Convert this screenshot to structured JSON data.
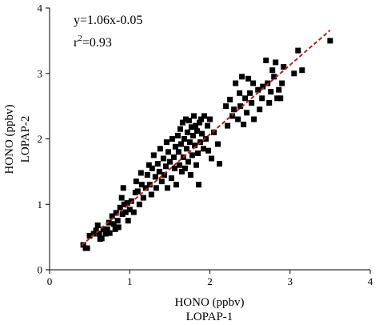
{
  "chart_data": {
    "type": "scatter",
    "xlabel_line1": "HONO (ppbv)",
    "xlabel_line2": "LOPAP-1",
    "ylabel_line1": "HONO (ppbv)",
    "ylabel_line2": "LOPAP-2",
    "xlim": [
      0,
      4
    ],
    "ylim": [
      0,
      4
    ],
    "x_ticks": [
      0,
      1,
      2,
      3,
      4
    ],
    "y_ticks": [
      0,
      1,
      2,
      3,
      4
    ],
    "equation": "y=1.06x-0.05",
    "r2_prefix": "r",
    "r2_sup": "2",
    "r2_value": "=0.93",
    "fit": {
      "slope": 1.06,
      "intercept": -0.05,
      "x_range": [
        0.4,
        3.5
      ],
      "color": "#b22222"
    },
    "points": [
      [
        0.42,
        0.38
      ],
      [
        0.45,
        0.33
      ],
      [
        0.47,
        0.33
      ],
      [
        0.5,
        0.52
      ],
      [
        0.55,
        0.55
      ],
      [
        0.58,
        0.6
      ],
      [
        0.6,
        0.68
      ],
      [
        0.62,
        0.55
      ],
      [
        0.63,
        0.47
      ],
      [
        0.65,
        0.48
      ],
      [
        0.67,
        0.62
      ],
      [
        0.7,
        0.55
      ],
      [
        0.72,
        0.62
      ],
      [
        0.74,
        0.72
      ],
      [
        0.75,
        0.56
      ],
      [
        0.78,
        0.82
      ],
      [
        0.8,
        0.7
      ],
      [
        0.82,
        0.62
      ],
      [
        0.83,
        0.87
      ],
      [
        0.85,
        0.75
      ],
      [
        0.86,
        0.65
      ],
      [
        0.88,
        0.95
      ],
      [
        0.9,
        1.1
      ],
      [
        0.91,
        0.85
      ],
      [
        0.92,
        1.25
      ],
      [
        0.93,
        1.0
      ],
      [
        0.95,
        0.88
      ],
      [
        0.97,
        1.02
      ],
      [
        0.98,
        0.75
      ],
      [
        1.0,
        0.92
      ],
      [
        1.02,
        1.05
      ],
      [
        1.05,
        0.88
      ],
      [
        1.07,
        1.18
      ],
      [
        1.08,
        1.35
      ],
      [
        1.1,
        1.2
      ],
      [
        1.12,
        1.0
      ],
      [
        1.14,
        1.48
      ],
      [
        1.15,
        1.3
      ],
      [
        1.17,
        1.1
      ],
      [
        1.2,
        1.25
      ],
      [
        1.22,
        1.45
      ],
      [
        1.24,
        1.6
      ],
      [
        1.25,
        1.3
      ],
      [
        1.27,
        1.15
      ],
      [
        1.28,
        1.55
      ],
      [
        1.3,
        1.75
      ],
      [
        1.32,
        1.42
      ],
      [
        1.33,
        1.25
      ],
      [
        1.35,
        1.62
      ],
      [
        1.37,
        1.5
      ],
      [
        1.38,
        1.85
      ],
      [
        1.4,
        1.35
      ],
      [
        1.42,
        1.7
      ],
      [
        1.43,
        1.45
      ],
      [
        1.45,
        1.58
      ],
      [
        1.46,
        1.95
      ],
      [
        1.47,
        1.25
      ],
      [
        1.48,
        1.8
      ],
      [
        1.5,
        1.65
      ],
      [
        1.52,
        1.4
      ],
      [
        1.53,
        2.0
      ],
      [
        1.55,
        1.72
      ],
      [
        1.56,
        1.55
      ],
      [
        1.57,
        1.88
      ],
      [
        1.58,
        1.3
      ],
      [
        1.6,
        2.05
      ],
      [
        1.61,
        1.8
      ],
      [
        1.62,
        1.6
      ],
      [
        1.63,
        2.15
      ],
      [
        1.64,
        1.92
      ],
      [
        1.65,
        1.5
      ],
      [
        1.66,
        2.25
      ],
      [
        1.67,
        1.72
      ],
      [
        1.68,
        2.0
      ],
      [
        1.69,
        1.55
      ],
      [
        1.7,
        2.3
      ],
      [
        1.71,
        1.85
      ],
      [
        1.72,
        2.1
      ],
      [
        1.73,
        1.65
      ],
      [
        1.74,
        2.28
      ],
      [
        1.75,
        1.95
      ],
      [
        1.76,
        1.45
      ],
      [
        1.77,
        2.18
      ],
      [
        1.78,
        1.75
      ],
      [
        1.79,
        2.05
      ],
      [
        1.8,
        2.35
      ],
      [
        1.81,
        1.9
      ],
      [
        1.82,
        2.2
      ],
      [
        1.83,
        1.6
      ],
      [
        1.84,
        2.12
      ],
      [
        1.85,
        1.78
      ],
      [
        1.86,
        1.3
      ],
      [
        1.87,
        2.25
      ],
      [
        1.88,
        1.95
      ],
      [
        1.89,
        2.3
      ],
      [
        1.9,
        2.08
      ],
      [
        1.92,
        1.85
      ],
      [
        1.93,
        2.35
      ],
      [
        1.95,
        2.0
      ],
      [
        1.97,
        2.2
      ],
      [
        1.98,
        1.82
      ],
      [
        2.0,
        2.3
      ],
      [
        2.02,
        1.7
      ],
      [
        2.05,
        2.1
      ],
      [
        2.1,
        1.92
      ],
      [
        2.12,
        1.62
      ],
      [
        2.2,
        2.5
      ],
      [
        2.22,
        2.2
      ],
      [
        2.25,
        2.6
      ],
      [
        2.28,
        2.35
      ],
      [
        2.3,
        2.45
      ],
      [
        2.32,
        2.85
      ],
      [
        2.35,
        2.3
      ],
      [
        2.37,
        2.7
      ],
      [
        2.38,
        2.5
      ],
      [
        2.4,
        2.95
      ],
      [
        2.42,
        2.22
      ],
      [
        2.44,
        2.62
      ],
      [
        2.46,
        2.4
      ],
      [
        2.48,
        2.92
      ],
      [
        2.5,
        2.7
      ],
      [
        2.52,
        2.55
      ],
      [
        2.54,
        2.85
      ],
      [
        2.55,
        2.3
      ],
      [
        2.6,
        2.75
      ],
      [
        2.62,
        2.45
      ],
      [
        2.65,
        2.62
      ],
      [
        2.66,
        2.8
      ],
      [
        2.7,
        3.2
      ],
      [
        2.72,
        2.85
      ],
      [
        2.74,
        2.55
      ],
      [
        2.76,
        2.72
      ],
      [
        2.78,
        3.05
      ],
      [
        2.8,
        2.95
      ],
      [
        2.82,
        3.17
      ],
      [
        2.84,
        2.62
      ],
      [
        2.86,
        2.75
      ],
      [
        2.88,
        2.62
      ],
      [
        2.9,
        2.85
      ],
      [
        2.92,
        3.1
      ],
      [
        3.05,
        3.0
      ],
      [
        3.1,
        3.35
      ],
      [
        3.15,
        3.05
      ],
      [
        3.5,
        3.5
      ]
    ]
  }
}
